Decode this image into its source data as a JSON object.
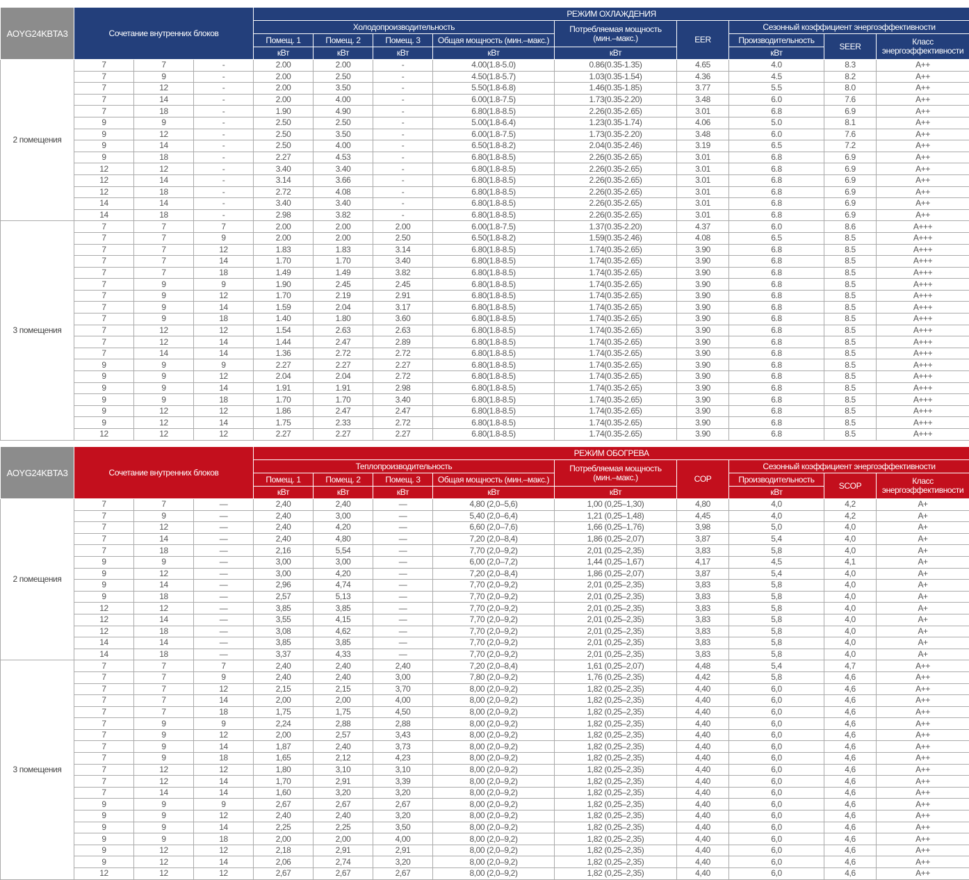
{
  "colors": {
    "cooling_header": "#233f7b",
    "heating_header": "#c30f1d",
    "model_cell": "#8c8c8c"
  },
  "cooling": {
    "model": "AOYG24KBTA3",
    "mode_title": "РЕЖИМ ОХЛАЖДЕНИЯ",
    "combo_label": "Сочетание внутренних блоков",
    "capacity_label": "Холодопроизводительность",
    "room1": "Помещ. 1",
    "room2": "Помещ. 2",
    "room3": "Помещ. 3",
    "total_label": "Общая мощность (мин.–макс.)",
    "power_label_1": "Потребляемая мощность",
    "power_label_2": "(мин.–макс.)",
    "ratio_label": "EER",
    "seasonal_label": "Сезонный коэффициент энергоэффективности",
    "prod_label": "Производительность",
    "seasonal_ratio_label": "SEER",
    "class_label_1": "Класс",
    "class_label_2": "энергоэффективности",
    "unit": "кВт",
    "groups": [
      {
        "label": "2 помещения",
        "rows": [
          [
            "7",
            "7",
            "-",
            "2.00",
            "2.00",
            "-",
            "4.00(1.8-5.0)",
            "0.86(0.35-1.35)",
            "4.65",
            "4.0",
            "8.3",
            "A++"
          ],
          [
            "7",
            "9",
            "-",
            "2.00",
            "2.50",
            "-",
            "4.50(1.8-5.7)",
            "1.03(0.35-1.54)",
            "4.36",
            "4.5",
            "8.2",
            "A++"
          ],
          [
            "7",
            "12",
            "-",
            "2.00",
            "3.50",
            "-",
            "5.50(1.8-6.8)",
            "1.46(0.35-1.85)",
            "3.77",
            "5.5",
            "8.0",
            "A++"
          ],
          [
            "7",
            "14",
            "-",
            "2.00",
            "4.00",
            "-",
            "6.00(1.8-7.5)",
            "1.73(0.35-2.20)",
            "3.48",
            "6.0",
            "7.6",
            "A++"
          ],
          [
            "7",
            "18",
            "-",
            "1.90",
            "4.90",
            "-",
            "6.80(1.8-8.5)",
            "2.26(0.35-2.65)",
            "3.01",
            "6.8",
            "6.9",
            "A++"
          ],
          [
            "9",
            "9",
            "-",
            "2.50",
            "2.50",
            "-",
            "5.00(1.8-6.4)",
            "1.23(0.35-1.74)",
            "4.06",
            "5.0",
            "8.1",
            "A++"
          ],
          [
            "9",
            "12",
            "-",
            "2.50",
            "3.50",
            "-",
            "6.00(1.8-7.5)",
            "1.73(0.35-2.20)",
            "3.48",
            "6.0",
            "7.6",
            "A++"
          ],
          [
            "9",
            "14",
            "-",
            "2.50",
            "4.00",
            "-",
            "6.50(1.8-8.2)",
            "2.04(0.35-2.46)",
            "3.19",
            "6.5",
            "7.2",
            "A++"
          ],
          [
            "9",
            "18",
            "-",
            "2.27",
            "4.53",
            "-",
            "6.80(1.8-8.5)",
            "2.26(0.35-2.65)",
            "3.01",
            "6.8",
            "6.9",
            "A++"
          ],
          [
            "12",
            "12",
            "-",
            "3.40",
            "3.40",
            "-",
            "6.80(1.8-8.5)",
            "2.26(0.35-2.65)",
            "3.01",
            "6.8",
            "6.9",
            "A++"
          ],
          [
            "12",
            "14",
            "-",
            "3.14",
            "3.66",
            "-",
            "6.80(1.8-8.5)",
            "2.26(0.35-2.65)",
            "3.01",
            "6.8",
            "6.9",
            "A++"
          ],
          [
            "12",
            "18",
            "-",
            "2.72",
            "4.08",
            "-",
            "6.80(1.8-8.5)",
            "2.26(0.35-2.65)",
            "3.01",
            "6.8",
            "6.9",
            "A++"
          ],
          [
            "14",
            "14",
            "-",
            "3.40",
            "3.40",
            "-",
            "6.80(1.8-8.5)",
            "2.26(0.35-2.65)",
            "3.01",
            "6.8",
            "6.9",
            "A++"
          ],
          [
            "14",
            "18",
            "-",
            "2.98",
            "3.82",
            "-",
            "6.80(1.8-8.5)",
            "2.26(0.35-2.65)",
            "3.01",
            "6.8",
            "6.9",
            "A++"
          ]
        ]
      },
      {
        "label": "3 помещения",
        "rows": [
          [
            "7",
            "7",
            "7",
            "2.00",
            "2.00",
            "2.00",
            "6.00(1.8-7.5)",
            "1.37(0.35-2.20)",
            "4.37",
            "6.0",
            "8.6",
            "A+++"
          ],
          [
            "7",
            "7",
            "9",
            "2.00",
            "2.00",
            "2.50",
            "6.50(1.8-8.2)",
            "1.59(0.35-2.46)",
            "4.08",
            "6.5",
            "8.5",
            "A+++"
          ],
          [
            "7",
            "7",
            "12",
            "1.83",
            "1.83",
            "3.14",
            "6.80(1.8-8.5)",
            "1.74(0.35-2.65)",
            "3.90",
            "6.8",
            "8.5",
            "A+++"
          ],
          [
            "7",
            "7",
            "14",
            "1.70",
            "1.70",
            "3.40",
            "6.80(1.8-8.5)",
            "1.74(0.35-2.65)",
            "3.90",
            "6.8",
            "8.5",
            "A+++"
          ],
          [
            "7",
            "7",
            "18",
            "1.49",
            "1.49",
            "3.82",
            "6.80(1.8-8.5)",
            "1.74(0.35-2.65)",
            "3.90",
            "6.8",
            "8.5",
            "A+++"
          ],
          [
            "7",
            "9",
            "9",
            "1.90",
            "2.45",
            "2.45",
            "6.80(1.8-8.5)",
            "1.74(0.35-2.65)",
            "3.90",
            "6.8",
            "8.5",
            "A+++"
          ],
          [
            "7",
            "9",
            "12",
            "1.70",
            "2.19",
            "2.91",
            "6.80(1.8-8.5)",
            "1.74(0.35-2.65)",
            "3.90",
            "6.8",
            "8.5",
            "A+++"
          ],
          [
            "7",
            "9",
            "14",
            "1.59",
            "2.04",
            "3.17",
            "6.80(1.8-8.5)",
            "1.74(0.35-2.65)",
            "3.90",
            "6.8",
            "8.5",
            "A+++"
          ],
          [
            "7",
            "9",
            "18",
            "1.40",
            "1.80",
            "3.60",
            "6.80(1.8-8.5)",
            "1.74(0.35-2.65)",
            "3.90",
            "6.8",
            "8.5",
            "A+++"
          ],
          [
            "7",
            "12",
            "12",
            "1.54",
            "2.63",
            "2.63",
            "6.80(1.8-8.5)",
            "1.74(0.35-2.65)",
            "3.90",
            "6.8",
            "8.5",
            "A+++"
          ],
          [
            "7",
            "12",
            "14",
            "1.44",
            "2.47",
            "2.89",
            "6.80(1.8-8.5)",
            "1.74(0.35-2.65)",
            "3.90",
            "6.8",
            "8.5",
            "A+++"
          ],
          [
            "7",
            "14",
            "14",
            "1.36",
            "2.72",
            "2.72",
            "6.80(1.8-8.5)",
            "1.74(0.35-2.65)",
            "3.90",
            "6.8",
            "8.5",
            "A+++"
          ],
          [
            "9",
            "9",
            "9",
            "2.27",
            "2.27",
            "2.27",
            "6.80(1.8-8.5)",
            "1.74(0.35-2.65)",
            "3.90",
            "6.8",
            "8.5",
            "A+++"
          ],
          [
            "9",
            "9",
            "12",
            "2.04",
            "2.04",
            "2.72",
            "6.80(1.8-8.5)",
            "1.74(0.35-2.65)",
            "3.90",
            "6.8",
            "8.5",
            "A+++"
          ],
          [
            "9",
            "9",
            "14",
            "1.91",
            "1.91",
            "2.98",
            "6.80(1.8-8.5)",
            "1.74(0.35-2.65)",
            "3.90",
            "6.8",
            "8.5",
            "A+++"
          ],
          [
            "9",
            "9",
            "18",
            "1.70",
            "1.70",
            "3.40",
            "6.80(1.8-8.5)",
            "1.74(0.35-2.65)",
            "3.90",
            "6.8",
            "8.5",
            "A+++"
          ],
          [
            "9",
            "12",
            "12",
            "1.86",
            "2.47",
            "2.47",
            "6.80(1.8-8.5)",
            "1.74(0.35-2.65)",
            "3.90",
            "6.8",
            "8.5",
            "A+++"
          ],
          [
            "9",
            "12",
            "14",
            "1.75",
            "2.33",
            "2.72",
            "6.80(1.8-8.5)",
            "1.74(0.35-2.65)",
            "3.90",
            "6.8",
            "8.5",
            "A+++"
          ],
          [
            "12",
            "12",
            "12",
            "2.27",
            "2.27",
            "2.27",
            "6.80(1.8-8.5)",
            "1.74(0.35-2.65)",
            "3.90",
            "6.8",
            "8.5",
            "A+++"
          ]
        ]
      }
    ]
  },
  "heating": {
    "model": "AOYG24KBTA3",
    "mode_title": "РЕЖИМ ОБОГРЕВА",
    "combo_label": "Сочетание внутренних блоков",
    "capacity_label": "Теплопроизводительность",
    "room1": "Помещ. 1",
    "room2": "Помещ. 2",
    "room3": "Помещ. 3",
    "total_label": "Общая мощность (мин.–макс.)",
    "power_label_1": "Потребляемая мощность",
    "power_label_2": "(мин.–макс.)",
    "ratio_label": "COP",
    "seasonal_label": "Сезонный коэффициент энергоэффективности",
    "prod_label": "Производительность",
    "seasonal_ratio_label": "SCOP",
    "class_label_1": "Класс",
    "class_label_2": "энергоэффективности",
    "unit": "кВт",
    "groups": [
      {
        "label": "2 помещения",
        "rows": [
          [
            "7",
            "7",
            "—",
            "2,40",
            "2,40",
            "—",
            "4,80 (2,0–5,6)",
            "1,00 (0,25–1,30)",
            "4,80",
            "4,0",
            "4,2",
            "A+"
          ],
          [
            "7",
            "9",
            "—",
            "2,40",
            "3,00",
            "—",
            "5,40 (2,0–6,4)",
            "1,21 (0,25–1,48)",
            "4,45",
            "4,0",
            "4,2",
            "A+"
          ],
          [
            "7",
            "12",
            "—",
            "2,40",
            "4,20",
            "—",
            "6,60 (2,0–7,6)",
            "1,66 (0,25–1,76)",
            "3,98",
            "5,0",
            "4,0",
            "A+"
          ],
          [
            "7",
            "14",
            "—",
            "2,40",
            "4,80",
            "—",
            "7,20 (2,0–8,4)",
            "1,86 (0,25–2,07)",
            "3,87",
            "5,4",
            "4,0",
            "A+"
          ],
          [
            "7",
            "18",
            "—",
            "2,16",
            "5,54",
            "—",
            "7,70 (2,0–9,2)",
            "2,01 (0,25–2,35)",
            "3,83",
            "5,8",
            "4,0",
            "A+"
          ],
          [
            "9",
            "9",
            "—",
            "3,00",
            "3,00",
            "—",
            "6,00 (2,0–7,2)",
            "1,44 (0,25–1,67)",
            "4,17",
            "4,5",
            "4,1",
            "A+"
          ],
          [
            "9",
            "12",
            "—",
            "3,00",
            "4,20",
            "—",
            "7,20 (2,0–8,4)",
            "1,86 (0,25–2,07)",
            "3,87",
            "5,4",
            "4,0",
            "A+"
          ],
          [
            "9",
            "14",
            "—",
            "2,96",
            "4,74",
            "—",
            "7,70 (2,0–9,2)",
            "2,01 (0,25–2,35)",
            "3,83",
            "5,8",
            "4,0",
            "A+"
          ],
          [
            "9",
            "18",
            "—",
            "2,57",
            "5,13",
            "—",
            "7,70 (2,0–9,2)",
            "2,01 (0,25–2,35)",
            "3,83",
            "5,8",
            "4,0",
            "A+"
          ],
          [
            "12",
            "12",
            "—",
            "3,85",
            "3,85",
            "—",
            "7,70 (2,0–9,2)",
            "2,01 (0,25–2,35)",
            "3,83",
            "5,8",
            "4,0",
            "A+"
          ],
          [
            "12",
            "14",
            "—",
            "3,55",
            "4,15",
            "—",
            "7,70 (2,0–9,2)",
            "2,01 (0,25–2,35)",
            "3,83",
            "5,8",
            "4,0",
            "A+"
          ],
          [
            "12",
            "18",
            "—",
            "3,08",
            "4,62",
            "—",
            "7,70 (2,0–9,2)",
            "2,01 (0,25–2,35)",
            "3,83",
            "5,8",
            "4,0",
            "A+"
          ],
          [
            "14",
            "14",
            "—",
            "3,85",
            "3,85",
            "—",
            "7,70 (2,0–9,2)",
            "2,01 (0,25–2,35)",
            "3,83",
            "5,8",
            "4,0",
            "A+"
          ],
          [
            "14",
            "18",
            "—",
            "3,37",
            "4,33",
            "—",
            "7,70 (2,0–9,2)",
            "2,01 (0,25–2,35)",
            "3,83",
            "5,8",
            "4,0",
            "A+"
          ]
        ]
      },
      {
        "label": "3 помещения",
        "rows": [
          [
            "7",
            "7",
            "7",
            "2,40",
            "2,40",
            "2,40",
            "7,20 (2,0–8,4)",
            "1,61 (0,25–2,07)",
            "4,48",
            "5,4",
            "4,7",
            "A++"
          ],
          [
            "7",
            "7",
            "9",
            "2,40",
            "2,40",
            "3,00",
            "7,80 (2,0–9,2)",
            "1,76 (0,25–2,35)",
            "4,42",
            "5,8",
            "4,6",
            "A++"
          ],
          [
            "7",
            "7",
            "12",
            "2,15",
            "2,15",
            "3,70",
            "8,00 (2,0–9,2)",
            "1,82 (0,25–2,35)",
            "4,40",
            "6,0",
            "4,6",
            "A++"
          ],
          [
            "7",
            "7",
            "14",
            "2,00",
            "2,00",
            "4,00",
            "8,00 (2,0–9,2)",
            "1,82 (0,25–2,35)",
            "4,40",
            "6,0",
            "4,6",
            "A++"
          ],
          [
            "7",
            "7",
            "18",
            "1,75",
            "1,75",
            "4,50",
            "8,00 (2,0–9,2)",
            "1,82 (0,25–2,35)",
            "4,40",
            "6,0",
            "4,6",
            "A++"
          ],
          [
            "7",
            "9",
            "9",
            "2,24",
            "2,88",
            "2,88",
            "8,00 (2,0–9,2)",
            "1,82 (0,25–2,35)",
            "4,40",
            "6,0",
            "4,6",
            "A++"
          ],
          [
            "7",
            "9",
            "12",
            "2,00",
            "2,57",
            "3,43",
            "8,00 (2,0–9,2)",
            "1,82 (0,25–2,35)",
            "4,40",
            "6,0",
            "4,6",
            "A++"
          ],
          [
            "7",
            "9",
            "14",
            "1,87",
            "2,40",
            "3,73",
            "8,00 (2,0–9,2)",
            "1,82 (0,25–2,35)",
            "4,40",
            "6,0",
            "4,6",
            "A++"
          ],
          [
            "7",
            "9",
            "18",
            "1,65",
            "2,12",
            "4,23",
            "8,00 (2,0–9,2)",
            "1,82 (0,25–2,35)",
            "4,40",
            "6,0",
            "4,6",
            "A++"
          ],
          [
            "7",
            "12",
            "12",
            "1,80",
            "3,10",
            "3,10",
            "8,00 (2,0–9,2)",
            "1,82 (0,25–2,35)",
            "4,40",
            "6,0",
            "4,6",
            "A++"
          ],
          [
            "7",
            "12",
            "14",
            "1,70",
            "2,91",
            "3,39",
            "8,00 (2,0–9,2)",
            "1,82 (0,25–2,35)",
            "4,40",
            "6,0",
            "4,6",
            "A++"
          ],
          [
            "7",
            "14",
            "14",
            "1,60",
            "3,20",
            "3,20",
            "8,00 (2,0–9,2)",
            "1,82 (0,25–2,35)",
            "4,40",
            "6,0",
            "4,6",
            "A++"
          ],
          [
            "9",
            "9",
            "9",
            "2,67",
            "2,67",
            "2,67",
            "8,00 (2,0–9,2)",
            "1,82 (0,25–2,35)",
            "4,40",
            "6,0",
            "4,6",
            "A++"
          ],
          [
            "9",
            "9",
            "12",
            "2,40",
            "2,40",
            "3,20",
            "8,00 (2,0–9,2)",
            "1,82 (0,25–2,35)",
            "4,40",
            "6,0",
            "4,6",
            "A++"
          ],
          [
            "9",
            "9",
            "14",
            "2,25",
            "2,25",
            "3,50",
            "8,00 (2,0–9,2)",
            "1,82 (0,25–2,35)",
            "4,40",
            "6,0",
            "4,6",
            "A++"
          ],
          [
            "9",
            "9",
            "18",
            "2,00",
            "2,00",
            "4,00",
            "8,00 (2,0–9,2)",
            "1,82 (0,25–2,35)",
            "4,40",
            "6,0",
            "4,6",
            "A++"
          ],
          [
            "9",
            "12",
            "12",
            "2,18",
            "2,91",
            "2,91",
            "8,00 (2,0–9,2)",
            "1,82 (0,25–2,35)",
            "4,40",
            "6,0",
            "4,6",
            "A++"
          ],
          [
            "9",
            "12",
            "14",
            "2,06",
            "2,74",
            "3,20",
            "8,00 (2,0–9,2)",
            "1,82 (0,25–2,35)",
            "4,40",
            "6,0",
            "4,6",
            "A++"
          ],
          [
            "12",
            "12",
            "12",
            "2,67",
            "2,67",
            "2,67",
            "8,00 (2,0–9,2)",
            "1,82 (0,25–2,35)",
            "4,40",
            "6,0",
            "4,6",
            "A++"
          ]
        ]
      }
    ]
  }
}
